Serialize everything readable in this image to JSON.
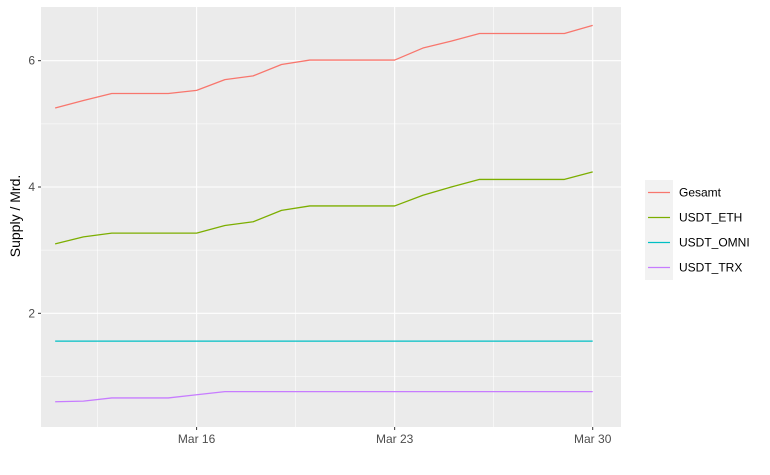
{
  "chart_data": {
    "type": "line",
    "xlabel": "",
    "ylabel": "Supply / Mrd.",
    "x": [
      "2020-03-11",
      "2020-03-12",
      "2020-03-13",
      "2020-03-14",
      "2020-03-15",
      "2020-03-16",
      "2020-03-17",
      "2020-03-18",
      "2020-03-19",
      "2020-03-20",
      "2020-03-21",
      "2020-03-22",
      "2020-03-23",
      "2020-03-24",
      "2020-03-25",
      "2020-03-26",
      "2020-03-27",
      "2020-03-28",
      "2020-03-29",
      "2020-03-30"
    ],
    "x_ticks": [
      {
        "date": "2020-03-16",
        "label": "Mar 16"
      },
      {
        "date": "2020-03-23",
        "label": "Mar 23"
      },
      {
        "date": "2020-03-30",
        "label": "Mar 30"
      }
    ],
    "y_ticks": [
      2,
      4,
      6
    ],
    "ylim": [
      0.2,
      6.85
    ],
    "xlim": [
      "2020-03-10T12:00",
      "2020-03-31T00:00"
    ],
    "grid": true,
    "legend_position": "right",
    "series": [
      {
        "name": "Gesamt",
        "color": "#F8766D",
        "values": [
          5.25,
          5.37,
          5.48,
          5.48,
          5.48,
          5.53,
          5.7,
          5.76,
          5.94,
          6.01,
          6.01,
          6.01,
          6.01,
          6.2,
          6.31,
          6.43,
          6.43,
          6.43,
          6.43,
          6.56
        ]
      },
      {
        "name": "USDT_ETH",
        "color": "#7CAE00",
        "values": [
          3.1,
          3.21,
          3.27,
          3.27,
          3.27,
          3.27,
          3.39,
          3.45,
          3.63,
          3.7,
          3.7,
          3.7,
          3.7,
          3.87,
          4.0,
          4.12,
          4.12,
          4.12,
          4.12,
          4.24
        ]
      },
      {
        "name": "USDT_OMNI",
        "color": "#00BFC4",
        "values": [
          1.56,
          1.56,
          1.56,
          1.56,
          1.56,
          1.56,
          1.56,
          1.56,
          1.56,
          1.56,
          1.56,
          1.56,
          1.56,
          1.56,
          1.56,
          1.56,
          1.56,
          1.56,
          1.56,
          1.56
        ]
      },
      {
        "name": "USDT_TRX",
        "color": "#C77CFF",
        "values": [
          0.6,
          0.61,
          0.66,
          0.66,
          0.66,
          0.71,
          0.76,
          0.76,
          0.76,
          0.76,
          0.76,
          0.76,
          0.76,
          0.76,
          0.76,
          0.76,
          0.76,
          0.76,
          0.76,
          0.76
        ]
      }
    ]
  }
}
